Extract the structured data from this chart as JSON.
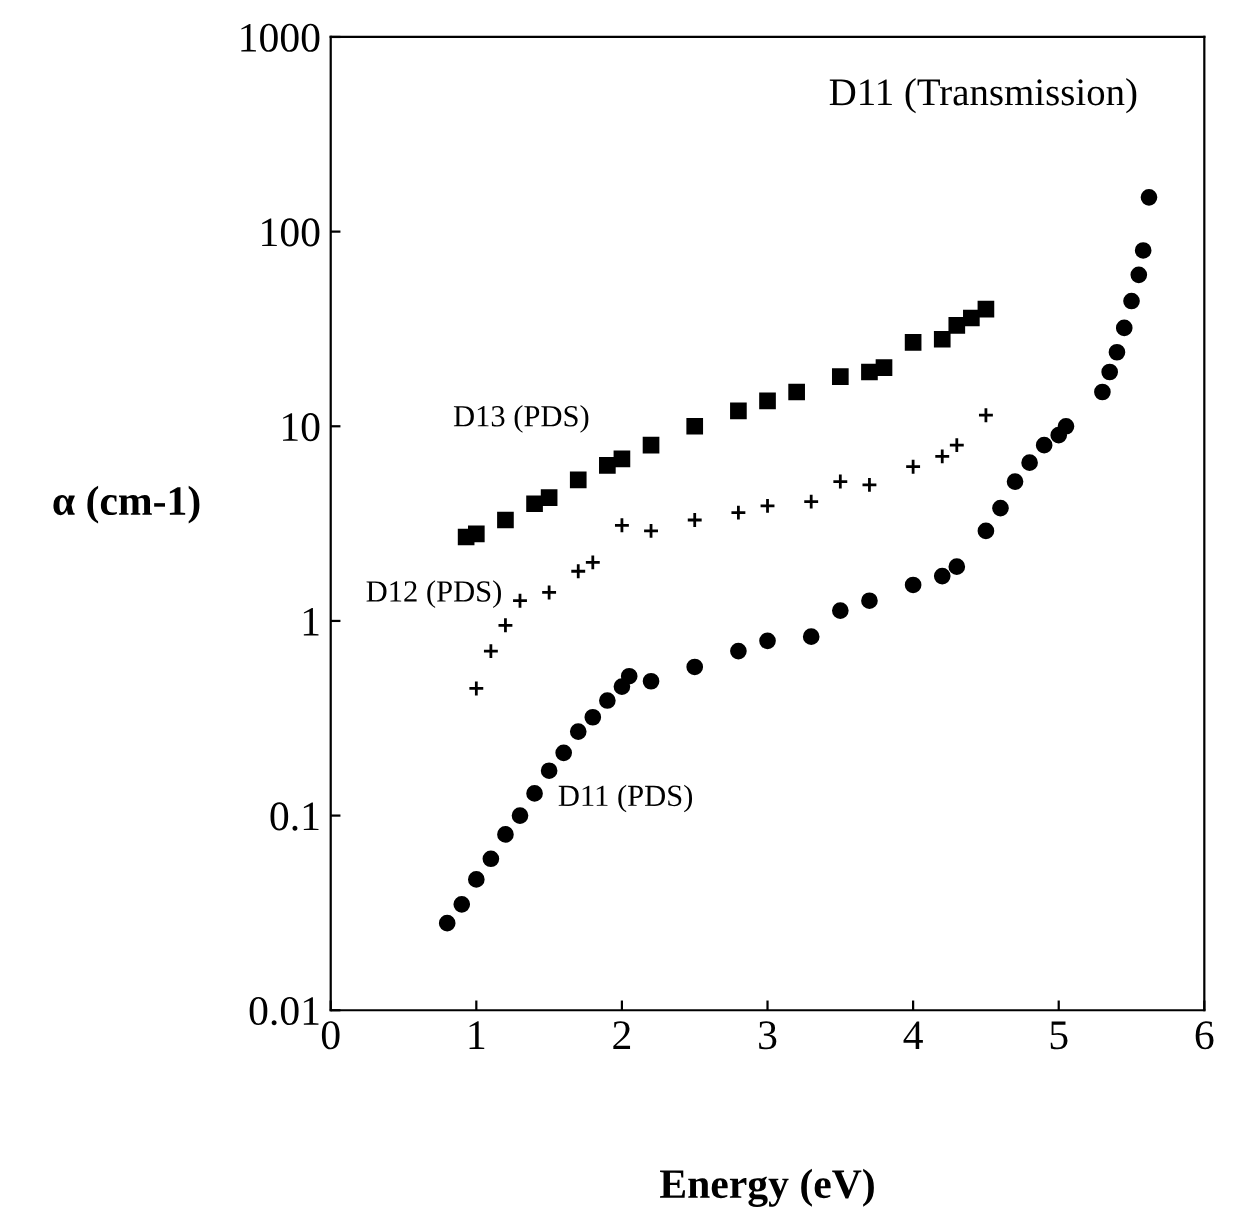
{
  "chart_data": {
    "type": "scatter",
    "xlabel": "Energy (eV)",
    "ylabel": "α (cm-1)",
    "log": "y",
    "xlim": [
      0,
      6
    ],
    "ylim": [
      0.01,
      1000
    ],
    "xticks": [
      0,
      1,
      2,
      3,
      4,
      5,
      6
    ],
    "yticks": [
      0.01,
      0.1,
      1,
      10,
      100,
      1000
    ],
    "grid": false,
    "legend": false,
    "series": [
      {
        "name": "D13 (PDS)",
        "color": "#000000",
        "marker": "square",
        "x": [
          0.93,
          1.0,
          1.2,
          1.4,
          1.5,
          1.7,
          1.9,
          2.0,
          2.2,
          2.5,
          2.8,
          3.0,
          3.2,
          3.5,
          3.7,
          3.8,
          4.0,
          4.2,
          4.3,
          4.4,
          4.5
        ],
        "values": [
          2.7,
          2.8,
          3.3,
          4.0,
          4.3,
          5.3,
          6.3,
          6.8,
          8.0,
          10,
          12,
          13.5,
          15,
          18,
          19,
          20,
          27,
          28,
          33,
          36,
          40
        ]
      },
      {
        "name": "D12 (PDS)",
        "color": "#000000",
        "marker": "cross",
        "x": [
          1.0,
          1.1,
          1.2,
          1.3,
          1.5,
          1.7,
          1.8,
          2.0,
          2.2,
          2.5,
          2.8,
          3.0,
          3.3,
          3.5,
          3.7,
          4.0,
          4.2,
          4.3,
          4.5
        ],
        "values": [
          0.45,
          0.7,
          0.95,
          1.27,
          1.4,
          1.8,
          2.0,
          3.1,
          2.9,
          3.3,
          3.6,
          3.9,
          4.1,
          5.2,
          5.0,
          6.2,
          7.0,
          8.0,
          11.4
        ]
      },
      {
        "name": "D11 (PDS)",
        "color": "#000000",
        "marker": "circle",
        "x": [
          0.8,
          0.9,
          1.0,
          1.1,
          1.2,
          1.3,
          1.4,
          1.5,
          1.6,
          1.7,
          1.8,
          1.9,
          2.0,
          2.05,
          2.2,
          2.5,
          2.8,
          3.0,
          3.3,
          3.5,
          3.7,
          4.0,
          4.2,
          4.3,
          4.5,
          4.6,
          4.7,
          4.8,
          4.9,
          5.0
        ],
        "values": [
          0.028,
          0.035,
          0.047,
          0.06,
          0.08,
          0.1,
          0.13,
          0.17,
          0.21,
          0.27,
          0.32,
          0.39,
          0.46,
          0.52,
          0.49,
          0.58,
          0.7,
          0.79,
          0.83,
          1.13,
          1.27,
          1.53,
          1.7,
          1.9,
          2.9,
          3.8,
          5.2,
          6.5,
          8.0,
          9.0
        ]
      },
      {
        "name": "D11 (Transmission)",
        "color": "#000000",
        "marker": "circle",
        "x": [
          5.05,
          5.3,
          5.35,
          5.4,
          5.45,
          5.5,
          5.55,
          5.58,
          5.62
        ],
        "values": [
          10,
          15,
          19,
          24,
          32,
          44,
          60,
          80,
          150
        ]
      }
    ]
  }
}
